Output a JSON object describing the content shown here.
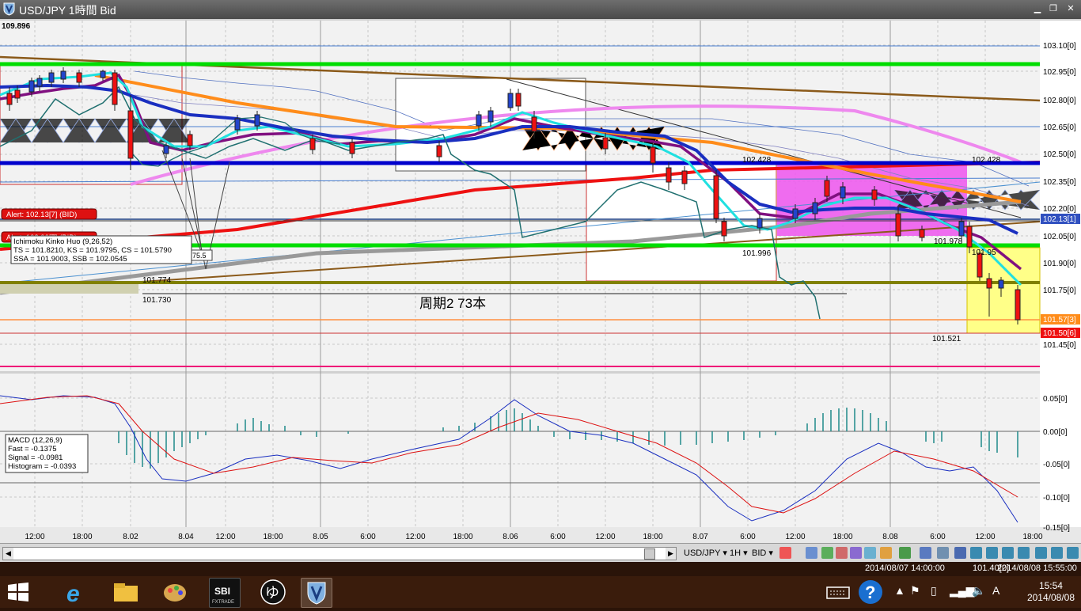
{
  "window": {
    "title": "USD/JPY 1時間 Bid",
    "minimize": "▁",
    "restore": "❐",
    "close": "✕"
  },
  "price_axis": {
    "top_price": "109.896",
    "labels": [
      "103.10[0]",
      "102.95[0]",
      "102.80[0]",
      "102.65[0]",
      "102.50[0]",
      "102.35[0]",
      "102.20[0]",
      "102.05[0]",
      "101.90[0]",
      "101.75[0]",
      "101.45[0]"
    ],
    "tag_blue": "102.13[1]",
    "tag_orange": "101.57[3]",
    "tag_red": "101.50[6]"
  },
  "macd_axis": [
    "0.05[0]",
    "0.00[0]",
    "-0.05[0]",
    "-0.10[0]",
    "-0.15[0]"
  ],
  "time_axis": [
    "12:00",
    "18:00",
    "8.02",
    "8.04",
    "12:00",
    "18:00",
    "8.05",
    "6:00",
    "12:00",
    "18:00",
    "8.06",
    "6:00",
    "12:00",
    "18:00",
    "8.07",
    "6:00",
    "12:00",
    "18:00",
    "8.08",
    "6:00",
    "12:00",
    "18:00"
  ],
  "alerts": {
    "alert1": "Alert: 102.13[7] (BID)",
    "alert2": "Alert: 102.00[7] (BID)"
  },
  "ichimoku": {
    "title": "Ichimoku Kinko Huo (9,26,52)",
    "line1": "TS = 101.8210, KS = 101.9795, CS = 101.5790",
    "line2": "SSA = 101.9003, SSB = 102.0545"
  },
  "macd": {
    "title": "MACD (12,26,9)",
    "fast": "Fast = -0.1375",
    "signal": "Signal = -0.0981",
    "histogram": "Histogram = -0.0393"
  },
  "annotations": {
    "cycle": "周期2  73本",
    "l1": "102.428",
    "l2": "102.428",
    "l3": "101.996",
    "l4": "101.978",
    "l5": "101.95",
    "l6": "101.774",
    "l7": "101.730",
    "l8": "101.521",
    "l9": "75.5"
  },
  "toolbar": {
    "symbol": "USD/JPY",
    "timeframe": "1H",
    "side": "BID"
  },
  "status": {
    "from": "2014/08/07 14:00:00",
    "price": "101.40[2]",
    "to": "2014/08/08 15:55:00"
  },
  "taskbar": {
    "ime": "A",
    "time": "15:54",
    "date": "2014/08/08"
  },
  "colors": {
    "bg": "#f0f0f0",
    "green": "#00dd00",
    "blue": "#0000cc",
    "red": "#ee1111",
    "pink": "#ee88ee",
    "orange": "#ff8c1a",
    "magenta_box": "#ee55ee",
    "yellow_box": "#ffff88"
  }
}
